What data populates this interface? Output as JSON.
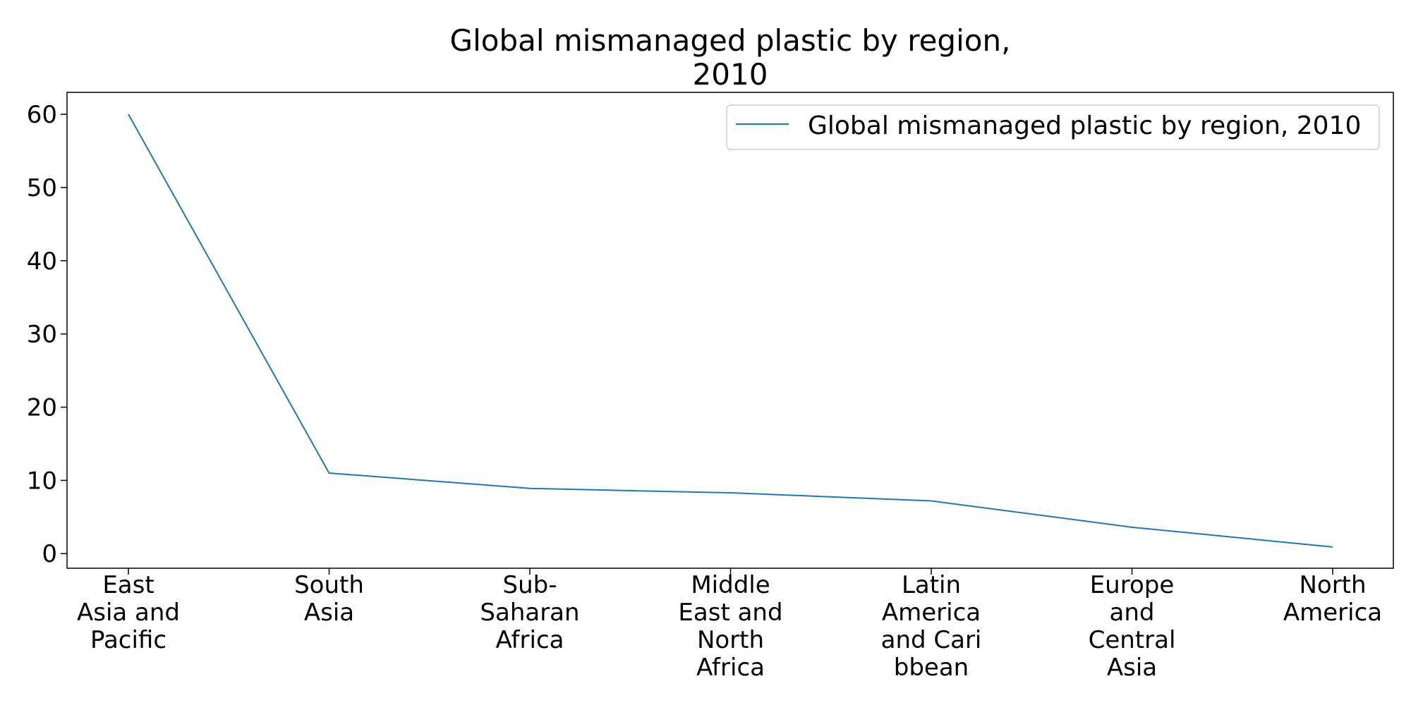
{
  "chart_data": {
    "type": "line",
    "title": "Global mismanaged plastic by region,\n2010",
    "xlabel": "",
    "ylabel": "",
    "categories": [
      "East\nAsia and\nPacific",
      "South\nAsia",
      "Sub-\nSaharan\nAfrica",
      "Middle\nEast and\nNorth\nAfrica",
      "Latin\nAmerica\nand Cari\nbbean",
      "Europe\nand\nCentral\nAsia",
      "North\nAmerica"
    ],
    "series": [
      {
        "name": "Global mismanaged plastic by region, 2010",
        "color": "#1f77b4",
        "values": [
          60,
          11,
          8.9,
          8.3,
          7.2,
          3.6,
          0.9
        ]
      }
    ],
    "yticks": [
      0,
      10,
      20,
      30,
      40,
      50,
      60
    ],
    "ylim": [
      -2,
      63
    ],
    "grid": false,
    "legend_position": "top-right"
  }
}
